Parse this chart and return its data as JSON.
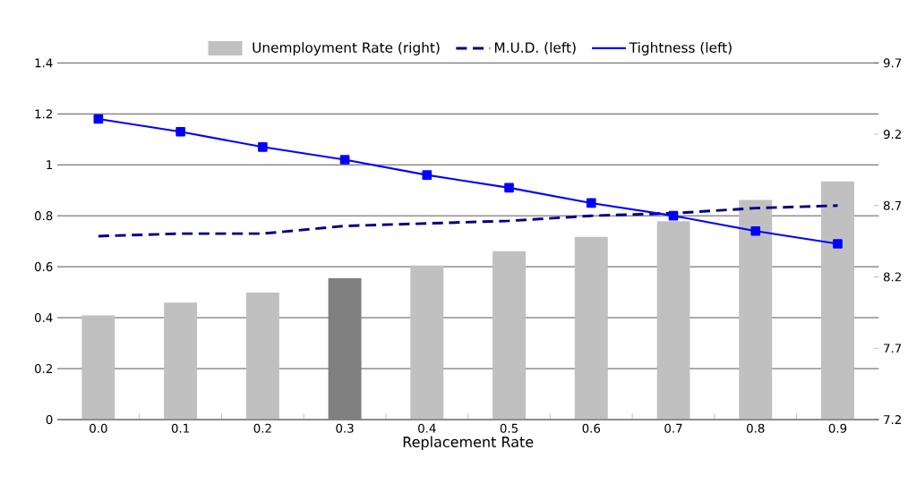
{
  "chart_data": {
    "type": "bar",
    "xlabel": "Replacement Rate",
    "categories": [
      "0.0",
      "0.1",
      "0.2",
      "0.3",
      "0.4",
      "0.5",
      "0.6",
      "0.7",
      "0.8",
      "0.9"
    ],
    "series": [
      {
        "name": "Unemployment Rate (right)",
        "axis": "y2",
        "color": "#c0c0c0",
        "colors": [
          "#c0c0c0",
          "#c0c0c0",
          "#c0c0c0",
          "#808080",
          "#c0c0c0",
          "#c0c0c0",
          "#c0c0c0",
          "#c0c0c0",
          "#c0c0c0",
          "#c0c0c0"
        ],
        "values": [
          7.93,
          8.02,
          8.09,
          8.19,
          8.28,
          8.38,
          8.48,
          8.59,
          8.74,
          8.87
        ]
      },
      {
        "name": "M.U.D. (left)",
        "type": "line",
        "color": "#000080",
        "line_style": "dashed",
        "marker": "none",
        "values": [
          0.72,
          0.73,
          0.73,
          0.76,
          0.77,
          0.78,
          0.8,
          0.81,
          0.83,
          0.84
        ]
      },
      {
        "name": "Tightness (left)",
        "type": "line",
        "color": "#0000ff",
        "line_style": "solid",
        "marker": "square",
        "values": [
          1.18,
          1.13,
          1.07,
          1.02,
          0.96,
          0.91,
          0.85,
          0.8,
          0.74,
          0.69
        ]
      }
    ],
    "ylim": [
      0,
      1.4
    ],
    "yticks": [
      0,
      0.2,
      0.4,
      0.6,
      0.8,
      1,
      1.2,
      1.4
    ],
    "y2lim": [
      7.2,
      9.7
    ],
    "y2ticks": [
      7.2,
      7.7,
      8.2,
      8.7,
      9.2,
      9.7
    ],
    "grid": "y",
    "legend": "top"
  }
}
